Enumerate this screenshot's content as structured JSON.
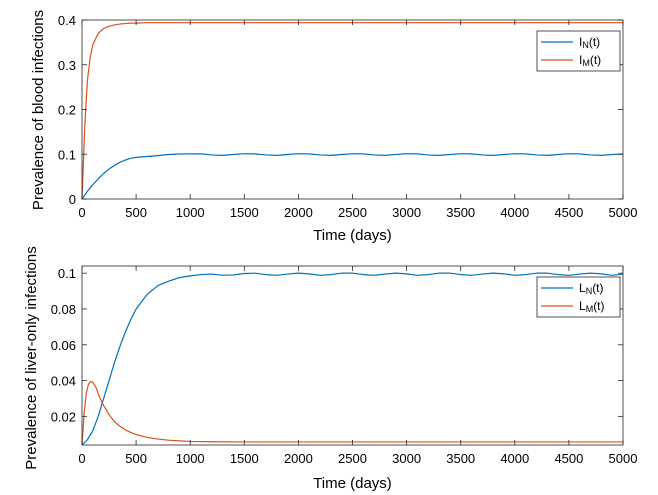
{
  "chart_data": [
    {
      "type": "line",
      "xlabel": "Time (days)",
      "ylabel": "Prevalence of blood infections",
      "xlim": [
        0,
        5000
      ],
      "ylim": [
        0,
        0.4
      ],
      "xticks": [
        "0",
        "500",
        "1000",
        "1500",
        "2000",
        "2500",
        "3000",
        "3500",
        "4000",
        "4500",
        "5000"
      ],
      "yticks": [
        "0",
        "0.1",
        "0.2",
        "0.3",
        "0.4"
      ],
      "xtick_values": [
        0,
        500,
        1000,
        1500,
        2000,
        2500,
        3000,
        3500,
        4000,
        4500,
        5000
      ],
      "ytick_values": [
        0,
        0.1,
        0.2,
        0.3,
        0.4
      ],
      "grid": false,
      "legend_position": "top-right",
      "series": [
        {
          "name": "I",
          "subscript": "N",
          "suffix": "(t)",
          "color": "#0072BD",
          "x": [
            0,
            50,
            100,
            150,
            200,
            250,
            300,
            350,
            400,
            450,
            500,
            600,
            700,
            800,
            900,
            1000,
            1100,
            1200,
            1300,
            1400,
            1500,
            1600,
            1700,
            1800,
            1900,
            2000,
            2100,
            2200,
            2300,
            2400,
            2500,
            2600,
            2700,
            2800,
            2900,
            3000,
            3100,
            3200,
            3300,
            3400,
            3500,
            3600,
            3700,
            3800,
            3900,
            4000,
            4100,
            4200,
            4300,
            4400,
            4500,
            4600,
            4700,
            4800,
            4900,
            5000
          ],
          "y": [
            0,
            0.017,
            0.032,
            0.045,
            0.057,
            0.067,
            0.075,
            0.082,
            0.087,
            0.091,
            0.093,
            0.095,
            0.097,
            0.0995,
            0.1005,
            0.101,
            0.1008,
            0.0985,
            0.0975,
            0.0995,
            0.1012,
            0.1008,
            0.0985,
            0.0975,
            0.0995,
            0.1012,
            0.1008,
            0.0985,
            0.0975,
            0.0995,
            0.1012,
            0.1008,
            0.0985,
            0.0975,
            0.0995,
            0.1012,
            0.1008,
            0.0985,
            0.0975,
            0.0995,
            0.1012,
            0.1008,
            0.0985,
            0.0975,
            0.0995,
            0.1012,
            0.1008,
            0.0985,
            0.0975,
            0.0995,
            0.1012,
            0.1008,
            0.0985,
            0.0975,
            0.0995,
            0.1005
          ]
        },
        {
          "name": "I",
          "subscript": "M",
          "suffix": "(t)",
          "color": "#D95319",
          "x": [
            0,
            25,
            50,
            75,
            100,
            150,
            200,
            250,
            300,
            350,
            400,
            450,
            500,
            600,
            700,
            800,
            1000,
            1500,
            2000,
            2500,
            3000,
            3500,
            4000,
            4500,
            5000
          ],
          "y": [
            0,
            0.16,
            0.265,
            0.315,
            0.345,
            0.37,
            0.381,
            0.386,
            0.389,
            0.391,
            0.392,
            0.393,
            0.393,
            0.394,
            0.394,
            0.394,
            0.394,
            0.394,
            0.394,
            0.394,
            0.394,
            0.394,
            0.394,
            0.394,
            0.394
          ]
        }
      ]
    },
    {
      "type": "line",
      "xlabel": "Time (days)",
      "ylabel": "Prevalence of liver-only infections",
      "xlim": [
        0,
        5000
      ],
      "ylim": [
        0.004,
        0.104
      ],
      "xticks": [
        "0",
        "500",
        "1000",
        "1500",
        "2000",
        "2500",
        "3000",
        "3500",
        "4000",
        "4500",
        "5000"
      ],
      "yticks": [
        "0.02",
        "0.04",
        "0.06",
        "0.08",
        "0.1"
      ],
      "xtick_values": [
        0,
        500,
        1000,
        1500,
        2000,
        2500,
        3000,
        3500,
        4000,
        4500,
        5000
      ],
      "ytick_values": [
        0.02,
        0.04,
        0.06,
        0.08,
        0.1
      ],
      "grid": false,
      "legend_position": "top-right",
      "series": [
        {
          "name": "L",
          "subscript": "N",
          "suffix": "(t)",
          "color": "#0072BD",
          "x": [
            0,
            50,
            100,
            150,
            200,
            250,
            300,
            350,
            400,
            450,
            500,
            600,
            700,
            800,
            900,
            1000,
            1100,
            1200,
            1300,
            1400,
            1500,
            1600,
            1700,
            1800,
            1900,
            2000,
            2100,
            2200,
            2300,
            2400,
            2500,
            2600,
            2700,
            2800,
            2900,
            3000,
            3100,
            3200,
            3300,
            3400,
            3500,
            3600,
            3700,
            3800,
            3900,
            4000,
            4100,
            4200,
            4300,
            4400,
            4500,
            4600,
            4700,
            4800,
            4900,
            5000
          ],
          "y": [
            0.004,
            0.007,
            0.012,
            0.02,
            0.03,
            0.04,
            0.05,
            0.059,
            0.067,
            0.074,
            0.08,
            0.088,
            0.093,
            0.0955,
            0.0975,
            0.0985,
            0.0992,
            0.0995,
            0.0988,
            0.099,
            0.0998,
            0.1,
            0.0992,
            0.0988,
            0.0995,
            0.1,
            0.0996,
            0.0988,
            0.0992,
            0.1,
            0.1,
            0.0992,
            0.0988,
            0.0995,
            0.1,
            0.0996,
            0.0988,
            0.0992,
            0.1,
            0.1,
            0.0992,
            0.0988,
            0.0995,
            0.1,
            0.0996,
            0.0988,
            0.0992,
            0.1,
            0.1,
            0.0992,
            0.0988,
            0.0995,
            0.1,
            0.0996,
            0.0988,
            0.0995
          ]
        },
        {
          "name": "L",
          "subscript": "M",
          "suffix": "(t)",
          "color": "#D95319",
          "x": [
            0,
            20,
            40,
            60,
            80,
            100,
            130,
            160,
            200,
            250,
            300,
            350,
            400,
            450,
            500,
            600,
            700,
            800,
            900,
            1000,
            1200,
            1500,
            2000,
            2500,
            3000,
            3500,
            4000,
            4500,
            5000
          ],
          "y": [
            0.004,
            0.022,
            0.033,
            0.038,
            0.0395,
            0.039,
            0.036,
            0.031,
            0.026,
            0.021,
            0.017,
            0.0145,
            0.0125,
            0.011,
            0.0098,
            0.0083,
            0.0073,
            0.0067,
            0.0063,
            0.006,
            0.0058,
            0.0057,
            0.0057,
            0.0057,
            0.0057,
            0.0057,
            0.0057,
            0.0057,
            0.0057
          ]
        }
      ]
    }
  ]
}
